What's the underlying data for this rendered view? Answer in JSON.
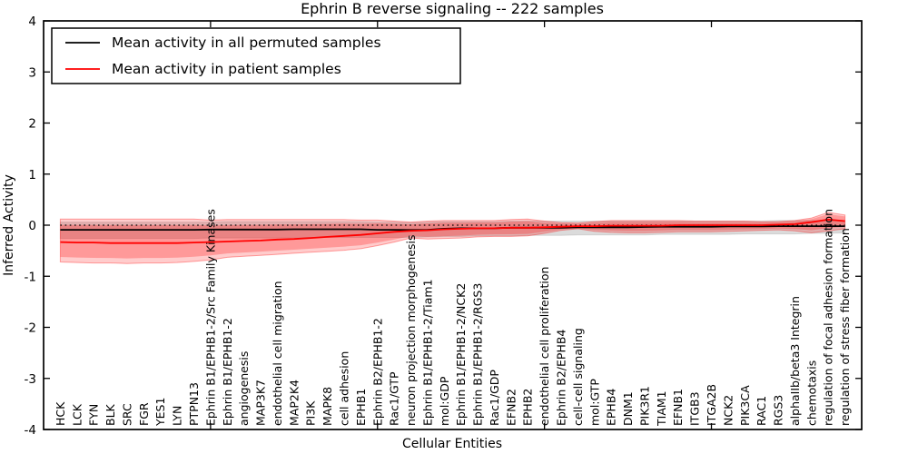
{
  "chart_data": {
    "type": "line",
    "title": "Ephrin B reverse signaling -- 222 samples",
    "xlabel": "Cellular Entities",
    "ylabel": "Inferred Activity",
    "ylim": [
      -4,
      4
    ],
    "yticks": [
      "4",
      "3",
      "2",
      "1",
      "0",
      "-1",
      "-2",
      "-3",
      "-4"
    ],
    "ytick_values": [
      4,
      3,
      2,
      1,
      0,
      -1,
      -2,
      -3,
      -4
    ],
    "x_major_ticks": [
      10,
      20,
      30,
      40
    ],
    "grid": false,
    "legend_position": "upper-left",
    "legend": [
      {
        "label": "Mean activity in all permuted samples",
        "color": "#000000"
      },
      {
        "label": "Mean activity in patient samples",
        "color": "#ff0000"
      }
    ],
    "colors": {
      "permuted_line": "#000000",
      "patient_line": "#ff0000",
      "permuted_band": "#999999",
      "patient_band": "#ff0000",
      "zero_line": "#000000"
    },
    "zero_reference_line": 0,
    "patient_band_inner_ratio": 0.75,
    "categories": [
      "HCK",
      "LCK",
      "FYN",
      "BLK",
      "SRC",
      "FGR",
      "YES1",
      "LYN",
      "PTPN13",
      "Ephrin B1/EPHB1-2/Src Family Kinases",
      "Ephrin B1/EPHB1-2",
      "angiogenesis",
      "MAP3K7",
      "endothelial cell migration",
      "MAP2K4",
      "PI3K",
      "MAPK8",
      "cell adhesion",
      "EPHB1",
      "Ephrin B2/EPHB1-2",
      "Rac1/GTP",
      "neuron projection morphogenesis",
      "Ephrin B1/EPHB1-2/Tiam1",
      "mol:GDP",
      "Ephrin B1/EPHB1-2/NCK2",
      "Ephrin B1/EPHB1-2/RGS3",
      "Rac1/GDP",
      "EFNB2",
      "EPHB2",
      "endothelial cell proliferation",
      "Ephrin B2/EPHB4",
      "cell-cell signaling",
      "mol:GTP",
      "EPHB4",
      "DNM1",
      "PIK3R1",
      "TIAM1",
      "EFNB1",
      "ITGB3",
      "ITGA2B",
      "NCK2",
      "PIK3CA",
      "RAC1",
      "RGS3",
      "alphaIIb/beta3 Integrin",
      "chemotaxis",
      "regulation of focal adhesion formation",
      "regulation of stress fiber formation"
    ],
    "series": [
      {
        "name": "Mean activity in patient samples",
        "values": [
          -0.33,
          -0.34,
          -0.34,
          -0.35,
          -0.35,
          -0.35,
          -0.35,
          -0.35,
          -0.34,
          -0.33,
          -0.32,
          -0.31,
          -0.3,
          -0.28,
          -0.27,
          -0.25,
          -0.23,
          -0.21,
          -0.19,
          -0.16,
          -0.13,
          -0.11,
          -0.1,
          -0.08,
          -0.07,
          -0.06,
          -0.06,
          -0.05,
          -0.05,
          -0.04,
          -0.03,
          -0.02,
          -0.02,
          -0.01,
          -0.01,
          -0.01,
          -0.01,
          0.0,
          0.0,
          0.0,
          0.0,
          0.0,
          0.0,
          0.01,
          0.02,
          0.06,
          0.11,
          0.08
        ],
        "upper": [
          0.12,
          0.12,
          0.12,
          0.12,
          0.12,
          0.12,
          0.12,
          0.12,
          0.12,
          0.1,
          0.11,
          0.11,
          0.11,
          0.11,
          0.11,
          0.11,
          0.11,
          0.11,
          0.1,
          0.1,
          0.08,
          0.06,
          0.08,
          0.09,
          0.09,
          0.09,
          0.09,
          0.11,
          0.12,
          0.08,
          0.05,
          0.04,
          0.07,
          0.09,
          0.09,
          0.09,
          0.09,
          0.09,
          0.08,
          0.08,
          0.08,
          0.08,
          0.07,
          0.07,
          0.09,
          0.14,
          0.25,
          0.2
        ],
        "lower": [
          -0.72,
          -0.73,
          -0.74,
          -0.74,
          -0.75,
          -0.74,
          -0.74,
          -0.73,
          -0.71,
          -0.68,
          -0.63,
          -0.61,
          -0.59,
          -0.57,
          -0.55,
          -0.53,
          -0.51,
          -0.49,
          -0.46,
          -0.4,
          -0.33,
          -0.25,
          -0.27,
          -0.26,
          -0.25,
          -0.23,
          -0.22,
          -0.22,
          -0.21,
          -0.16,
          -0.1,
          -0.07,
          -0.12,
          -0.14,
          -0.15,
          -0.15,
          -0.14,
          -0.13,
          -0.13,
          -0.13,
          -0.12,
          -0.11,
          -0.1,
          -0.09,
          -0.11,
          -0.15,
          -0.11,
          -0.07
        ]
      },
      {
        "name": "Mean activity in all permuted samples",
        "values": [
          -0.09,
          -0.09,
          -0.09,
          -0.09,
          -0.09,
          -0.09,
          -0.09,
          -0.09,
          -0.09,
          -0.085,
          -0.085,
          -0.085,
          -0.085,
          -0.085,
          -0.08,
          -0.08,
          -0.08,
          -0.08,
          -0.08,
          -0.09,
          -0.09,
          -0.095,
          -0.09,
          -0.07,
          -0.06,
          -0.06,
          -0.06,
          -0.05,
          -0.05,
          -0.05,
          -0.05,
          -0.04,
          -0.04,
          -0.04,
          -0.04,
          -0.035,
          -0.03,
          -0.03,
          -0.03,
          -0.03,
          -0.025,
          -0.025,
          -0.025,
          -0.02,
          -0.02,
          -0.02,
          -0.02,
          -0.02
        ],
        "upper": [
          0.06,
          0.06,
          0.06,
          0.06,
          0.06,
          0.06,
          0.06,
          0.06,
          0.06,
          0.06,
          0.07,
          0.07,
          0.07,
          0.07,
          0.07,
          0.07,
          0.07,
          0.07,
          0.07,
          0.06,
          0.06,
          0.05,
          0.06,
          0.07,
          0.07,
          0.07,
          0.07,
          0.08,
          0.08,
          0.08,
          0.08,
          0.08,
          0.08,
          0.08,
          0.08,
          0.08,
          0.08,
          0.08,
          0.08,
          0.08,
          0.08,
          0.08,
          0.08,
          0.09,
          0.09,
          0.09,
          0.09,
          0.09
        ],
        "lower": [
          -0.26,
          -0.26,
          -0.26,
          -0.26,
          -0.26,
          -0.26,
          -0.26,
          -0.26,
          -0.26,
          -0.25,
          -0.25,
          -0.25,
          -0.25,
          -0.25,
          -0.24,
          -0.24,
          -0.24,
          -0.24,
          -0.24,
          -0.24,
          -0.24,
          -0.24,
          -0.23,
          -0.22,
          -0.22,
          -0.21,
          -0.21,
          -0.21,
          -0.2,
          -0.2,
          -0.2,
          -0.19,
          -0.19,
          -0.19,
          -0.19,
          -0.19,
          -0.18,
          -0.18,
          -0.18,
          -0.18,
          -0.18,
          -0.17,
          -0.17,
          -0.17,
          -0.17,
          -0.16,
          -0.16,
          -0.15
        ]
      }
    ]
  }
}
